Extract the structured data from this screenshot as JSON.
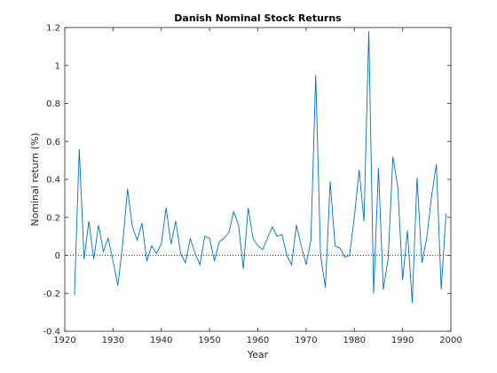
{
  "chart_data": {
    "type": "line",
    "title": "Danish Nominal Stock Returns",
    "xlabel": "Year",
    "ylabel": "Nominal return (%)",
    "xlim": [
      1920,
      2000
    ],
    "ylim": [
      -0.4,
      1.2
    ],
    "xticks": [
      1920,
      1930,
      1940,
      1950,
      1960,
      1970,
      1980,
      1990,
      2000
    ],
    "yticks": [
      -0.4,
      -0.2,
      0,
      0.2,
      0.4,
      0.6,
      0.8,
      1,
      1.2
    ],
    "ytick_labels": [
      "-0.4",
      "-0.2",
      "0",
      "0.2",
      "0.4",
      "0.6",
      "0.8",
      "1",
      "1.2"
    ],
    "grid": false,
    "colors": {
      "series": "#0072BD",
      "zero_line": "#cc0000"
    },
    "series": [
      {
        "x": [
          1922,
          1923,
          1924,
          1925,
          1926,
          1927,
          1928,
          1929,
          1930,
          1931,
          1932,
          1933,
          1934,
          1935,
          1936,
          1937,
          1938,
          1939,
          1940,
          1941,
          1942,
          1943,
          1944,
          1945,
          1946,
          1947,
          1948,
          1949,
          1950,
          1951,
          1952,
          1953,
          1954,
          1955,
          1956,
          1957,
          1958,
          1959,
          1960,
          1961,
          1962,
          1963,
          1964,
          1965,
          1966,
          1967,
          1968,
          1969,
          1970,
          1971,
          1972,
          1973,
          1974,
          1975,
          1976,
          1977,
          1978,
          1979,
          1980,
          1981,
          1982,
          1983,
          1984,
          1985,
          1986,
          1987,
          1988,
          1989,
          1990,
          1991,
          1992,
          1993,
          1994,
          1995,
          1996,
          1997,
          1998,
          1999
        ],
        "y": [
          -0.21,
          0.56,
          -0.02,
          0.18,
          -0.02,
          0.16,
          0.02,
          0.09,
          -0.03,
          -0.16,
          0.06,
          0.35,
          0.15,
          0.08,
          0.17,
          -0.03,
          0.05,
          0.01,
          0.06,
          0.25,
          0.06,
          0.18,
          0.01,
          -0.04,
          0.09,
          0.01,
          -0.05,
          0.1,
          0.09,
          -0.03,
          0.07,
          0.09,
          0.12,
          0.23,
          0.16,
          -0.07,
          0.25,
          0.09,
          0.05,
          0.03,
          0.09,
          0.15,
          0.1,
          0.11,
          0.0,
          -0.05,
          0.16,
          0.05,
          -0.05,
          0.08,
          0.95,
          0.0,
          -0.17,
          0.39,
          0.05,
          0.04,
          -0.01,
          0.0,
          0.2,
          0.45,
          0.18,
          1.18,
          -0.2,
          0.46,
          -0.18,
          -0.02,
          0.52,
          0.36,
          -0.13,
          0.13,
          -0.25,
          0.41,
          -0.04,
          0.09,
          0.31,
          0.48,
          -0.18,
          0.22
        ]
      }
    ],
    "reference_lines": [
      {
        "y": 0,
        "style": "dotted"
      }
    ]
  }
}
